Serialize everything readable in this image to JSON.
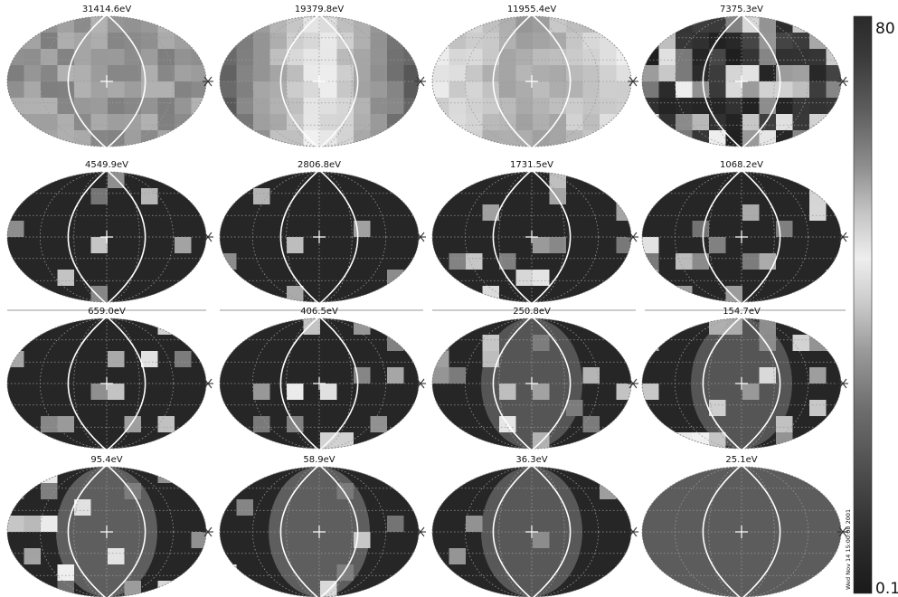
{
  "figure": {
    "panels": [
      {
        "energy_label": "31414.6eV"
      },
      {
        "energy_label": "19379.8eV"
      },
      {
        "energy_label": "11955.4eV"
      },
      {
        "energy_label": "7375.3eV"
      },
      {
        "energy_label": "4549.9eV"
      },
      {
        "energy_label": "2806.8eV"
      },
      {
        "energy_label": "1731.5eV"
      },
      {
        "energy_label": "1068.2eV"
      },
      {
        "energy_label": "659.0eV"
      },
      {
        "energy_label": "406.5eV"
      },
      {
        "energy_label": "250.8eV"
      },
      {
        "energy_label": "154.7eV"
      },
      {
        "energy_label": "95.4eV"
      },
      {
        "energy_label": "58.9eV"
      },
      {
        "energy_label": "36.3eV"
      },
      {
        "energy_label": "25.1eV"
      }
    ],
    "colorbar": {
      "max_label": "80",
      "min_label": "0.1"
    },
    "timestamp": "Wed Nov 14 15:00:08 2001",
    "colors": {
      "background": "#ffffff",
      "map_dark": "#262626",
      "grid": "#9a9a9a",
      "overlay": "#ffffff"
    }
  }
}
